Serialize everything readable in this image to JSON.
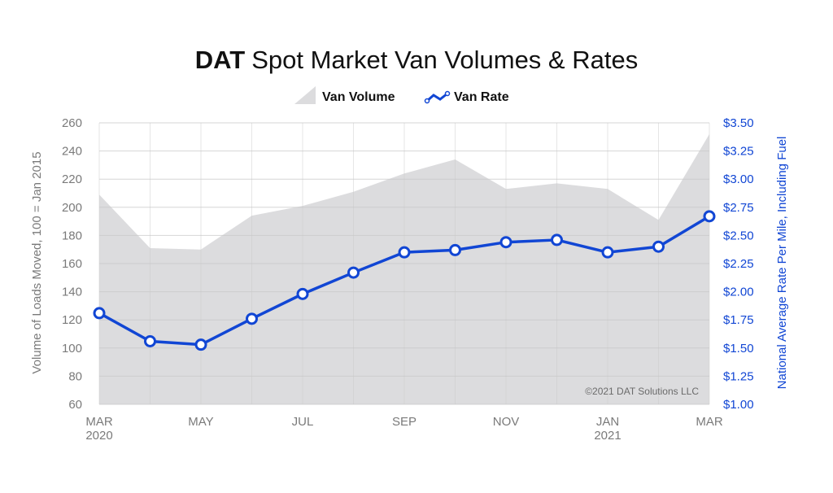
{
  "chart_data": {
    "type": "line",
    "title_brand": "DAT",
    "title": "Spot Market Van Volumes & Rates",
    "legend": {
      "position": "top-center",
      "items": [
        "Van Volume",
        "Van Rate"
      ]
    },
    "ylabel_left": "Volume of Loads Moved, 100 = Jan 2015",
    "ylabel_right": "National Average Rate Per Mile, Including Fuel",
    "y_left_range": [
      60,
      260
    ],
    "y_left_ticks": [
      "260",
      "240",
      "220",
      "200",
      "180",
      "160",
      "140",
      "120",
      "100",
      "80",
      "60"
    ],
    "y_right_range": [
      1.0,
      3.5
    ],
    "y_right_ticks": [
      "$3.50",
      "$3.25",
      "$3.00",
      "$2.75",
      "$2.50",
      "$2.25",
      "$2.00",
      "$1.75",
      "$1.50",
      "$1.25",
      "$1.00"
    ],
    "x_tick_labels": [
      {
        "line1": "MAR",
        "line2": "2020"
      },
      {
        "line1": "",
        "line2": ""
      },
      {
        "line1": "MAY",
        "line2": ""
      },
      {
        "line1": "",
        "line2": ""
      },
      {
        "line1": "JUL",
        "line2": ""
      },
      {
        "line1": "",
        "line2": ""
      },
      {
        "line1": "SEP",
        "line2": ""
      },
      {
        "line1": "",
        "line2": ""
      },
      {
        "line1": "NOV",
        "line2": ""
      },
      {
        "line1": "",
        "line2": ""
      },
      {
        "line1": "JAN",
        "line2": "2021"
      },
      {
        "line1": "",
        "line2": ""
      },
      {
        "line1": "MAR",
        "line2": ""
      }
    ],
    "grid": true,
    "copyright": "©2021 DAT Solutions LLC",
    "colors": {
      "volume_area": "#dcdcde",
      "rate_line": "#1146d4",
      "axis_text": "#7a7a7a",
      "right_axis_text": "#1146d4",
      "grid": "#c8c8c8"
    },
    "series": [
      {
        "name": "Van Volume",
        "type": "area",
        "axis": "left",
        "values": [
          209,
          171,
          170,
          194,
          201,
          211,
          224,
          234,
          213,
          217,
          213,
          191,
          252
        ]
      },
      {
        "name": "Van Rate",
        "type": "line",
        "axis": "right",
        "values": [
          1.81,
          1.56,
          1.53,
          1.76,
          1.98,
          2.17,
          2.35,
          2.37,
          2.44,
          2.46,
          2.35,
          2.4,
          2.67
        ]
      }
    ]
  }
}
